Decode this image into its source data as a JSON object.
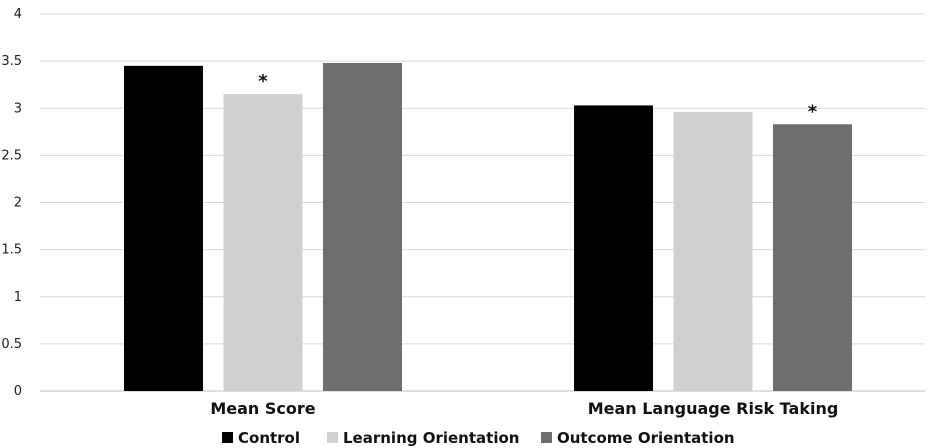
{
  "chart_data": {
    "type": "bar",
    "title": "",
    "xlabel": "",
    "ylabel": "",
    "ylim": [
      0,
      4
    ],
    "yticks": [
      0,
      0.5,
      1,
      1.5,
      2,
      2.5,
      3,
      3.5,
      4
    ],
    "ytick_labels": [
      "0",
      "0.5",
      "1",
      "1.5",
      "2",
      "2.5",
      "3",
      "3.5",
      "4"
    ],
    "grid": true,
    "legend_position": "bottom",
    "categories": [
      "Mean Score",
      "Mean Language Risk Taking"
    ],
    "series": [
      {
        "name": "Control",
        "color": "#000000",
        "values": [
          3.45,
          3.03
        ],
        "annotations": [
          "",
          ""
        ]
      },
      {
        "name": "Learning Orientation",
        "color": "#d0d0d0",
        "values": [
          3.15,
          2.96
        ],
        "annotations": [
          "*",
          ""
        ]
      },
      {
        "name": "Outcome Orientation",
        "color": "#6e6e6e",
        "values": [
          3.48,
          2.83
        ],
        "annotations": [
          "",
          "*"
        ]
      }
    ]
  }
}
